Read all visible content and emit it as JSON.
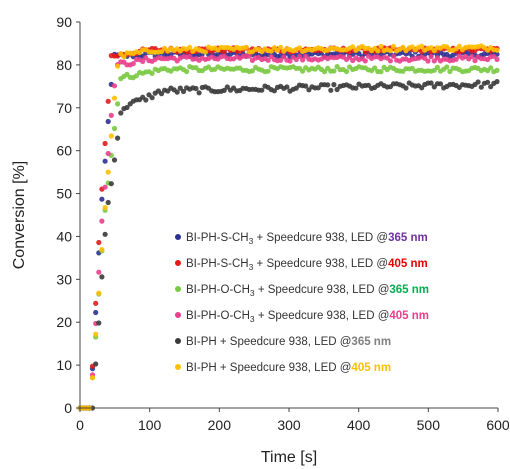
{
  "chart_data": {
    "type": "scatter",
    "xlabel": "Time [s]",
    "ylabel": "Conversion [%]",
    "xlim": [
      0,
      600
    ],
    "ylim": [
      0,
      90
    ],
    "xticks": [
      "0",
      "100",
      "200",
      "300",
      "400",
      "500",
      "600"
    ],
    "yticks": [
      "0",
      "10",
      "20",
      "30",
      "40",
      "50",
      "60",
      "70",
      "80",
      "90"
    ],
    "grid": false,
    "legend_position": "bottom-right",
    "series": [
      {
        "name": "BI-PH-S-CH3 + Speedcure 938, LED @365 nm",
        "legend": {
          "prefix": "BI-PH-S-CH",
          "sub": "3",
          "middle": " + Speedcure 938, LED @",
          "wl": "365 nm",
          "wl_color": "#7030a0"
        },
        "color": "#2e3192",
        "start": 15,
        "rise_end": 48,
        "plateau": 82.5,
        "noise": 0.6,
        "shape": "linear",
        "keypoints": [
          [
            0,
            0
          ],
          [
            15,
            0
          ],
          [
            30,
            45
          ],
          [
            48,
            82
          ],
          [
            100,
            82.5
          ],
          [
            600,
            82.5
          ]
        ]
      },
      {
        "name": "BI-PH-S-CH3 + Speedcure 938, LED @405 nm",
        "legend": {
          "prefix": "BI-PH-S-CH",
          "sub": "3",
          "middle": " + Speedcure 938, LED @",
          "wl": "405 nm",
          "wl_color": "#e60000"
        },
        "color": "#e31a1c",
        "start": 15,
        "rise_end": 45,
        "plateau": 83.5,
        "noise": 0.5,
        "shape": "linear",
        "keypoints": [
          [
            0,
            0
          ],
          [
            15,
            0
          ],
          [
            30,
            48
          ],
          [
            45,
            82
          ],
          [
            100,
            83.5
          ],
          [
            600,
            83.5
          ]
        ]
      },
      {
        "name": "BI-PH-O-CH3 + Speedcure 938, LED @365 nm",
        "legend": {
          "prefix": "BI-PH-O-CH",
          "sub": "3",
          "middle": " + Speedcure 938, LED @",
          "wl": "365 nm",
          "wl_color": "#00b050"
        },
        "color": "#7ac943",
        "start": 15,
        "rise_end": 58,
        "plateau": 79,
        "noise": 0.6,
        "shape": "linear",
        "keypoints": [
          [
            0,
            0
          ],
          [
            15,
            0
          ],
          [
            35,
            45
          ],
          [
            58,
            77
          ],
          [
            120,
            79
          ],
          [
            600,
            79
          ]
        ]
      },
      {
        "name": "BI-PH-O-CH3 + Speedcure 938, LED @405 nm",
        "legend": {
          "prefix": "BI-PH-O-CH",
          "sub": "3",
          "middle": " + Speedcure 938, LED @",
          "wl": "405 nm",
          "wl_color": "#e83e8c"
        },
        "color": "#e83e8c",
        "start": 15,
        "rise_end": 52,
        "plateau": 81.5,
        "noise": 0.6,
        "shape": "linear",
        "keypoints": [
          [
            0,
            0
          ],
          [
            15,
            0
          ],
          [
            32,
            45
          ],
          [
            52,
            80
          ],
          [
            110,
            81.5
          ],
          [
            600,
            81.5
          ]
        ]
      },
      {
        "name": "BI-PH + Speedcure 938, LED @365 nm",
        "legend": {
          "prefix": "BI-PH",
          "sub": "",
          "middle": " + Speedcure 938, LED @",
          "wl": "365 nm",
          "wl_color": "#808080"
        },
        "color": "#3a3a3a",
        "start": 18,
        "rise_end": 60,
        "plateau": 75,
        "noise": 0.7,
        "shape": "linear",
        "keypoints": [
          [
            0,
            0
          ],
          [
            18,
            0
          ],
          [
            38,
            45
          ],
          [
            60,
            70
          ],
          [
            120,
            74
          ],
          [
            600,
            75.5
          ]
        ]
      },
      {
        "name": "BI-PH + Speedcure 938, LED @405 nm",
        "legend": {
          "prefix": "BI-PH",
          "sub": "",
          "middle": " + Speedcure 938, LED @",
          "wl": "405 nm",
          "wl_color": "#ffc000"
        },
        "color": "#ffc000",
        "start": 15,
        "rise_end": 55,
        "plateau": 83.5,
        "noise": 0.6,
        "shape": "linear",
        "keypoints": [
          [
            0,
            0
          ],
          [
            15,
            0
          ],
          [
            35,
            45
          ],
          [
            55,
            82
          ],
          [
            110,
            83.5
          ],
          [
            600,
            84
          ]
        ]
      }
    ]
  }
}
